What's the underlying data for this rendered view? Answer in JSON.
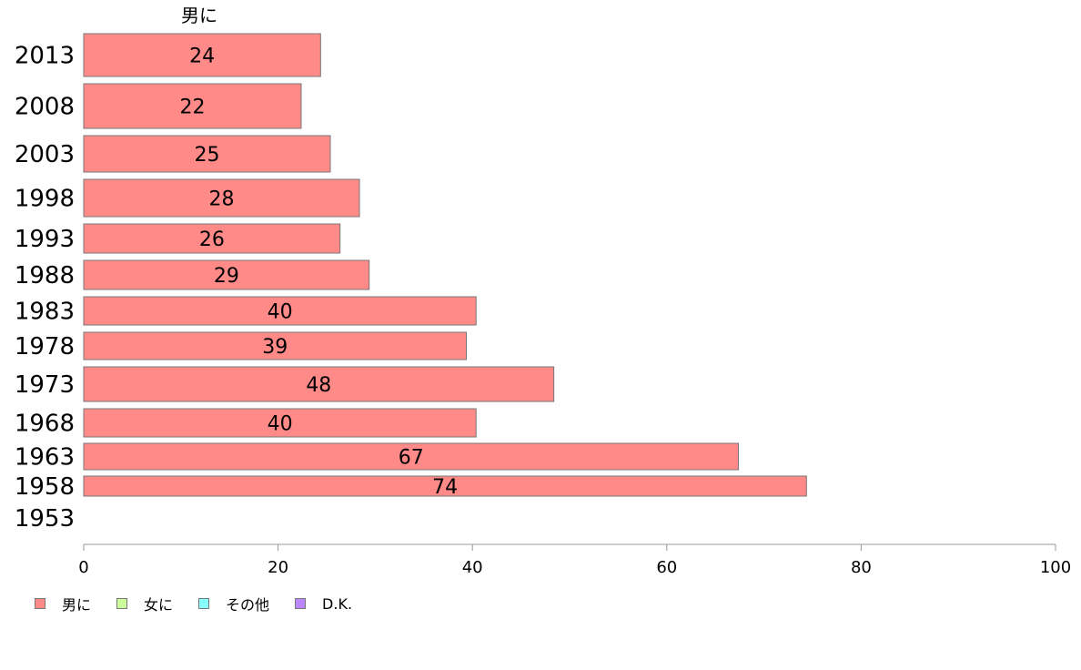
{
  "chart_data": {
    "type": "bar",
    "orientation": "horizontal",
    "title": "男に",
    "categories": [
      "2013",
      "2008",
      "2003",
      "1998",
      "1993",
      "1988",
      "1983",
      "1978",
      "1973",
      "1968",
      "1963",
      "1958",
      "1953"
    ],
    "series": [
      {
        "name": "男に",
        "color": "#ff8a87",
        "values": [
          24,
          22,
          25,
          28,
          26,
          29,
          40,
          39,
          48,
          40,
          67,
          74,
          null
        ],
        "value_labels": [
          "24",
          "22",
          "25",
          "28",
          "26",
          "29",
          "40",
          "39",
          "48",
          "40",
          "67",
          "74",
          ""
        ]
      }
    ],
    "x_ticks": [
      "0",
      "20",
      "40",
      "60",
      "80",
      "100"
    ],
    "xlim": [
      0,
      100
    ],
    "grid": false,
    "legend_position": "bottom-left"
  },
  "legend": [
    {
      "label": "男に",
      "color": "#ff8a87"
    },
    {
      "label": "女に",
      "color": "#ccff99"
    },
    {
      "label": "その他",
      "color": "#88ffff"
    },
    {
      "label": "D.K.",
      "color": "#bb88ff"
    }
  ]
}
